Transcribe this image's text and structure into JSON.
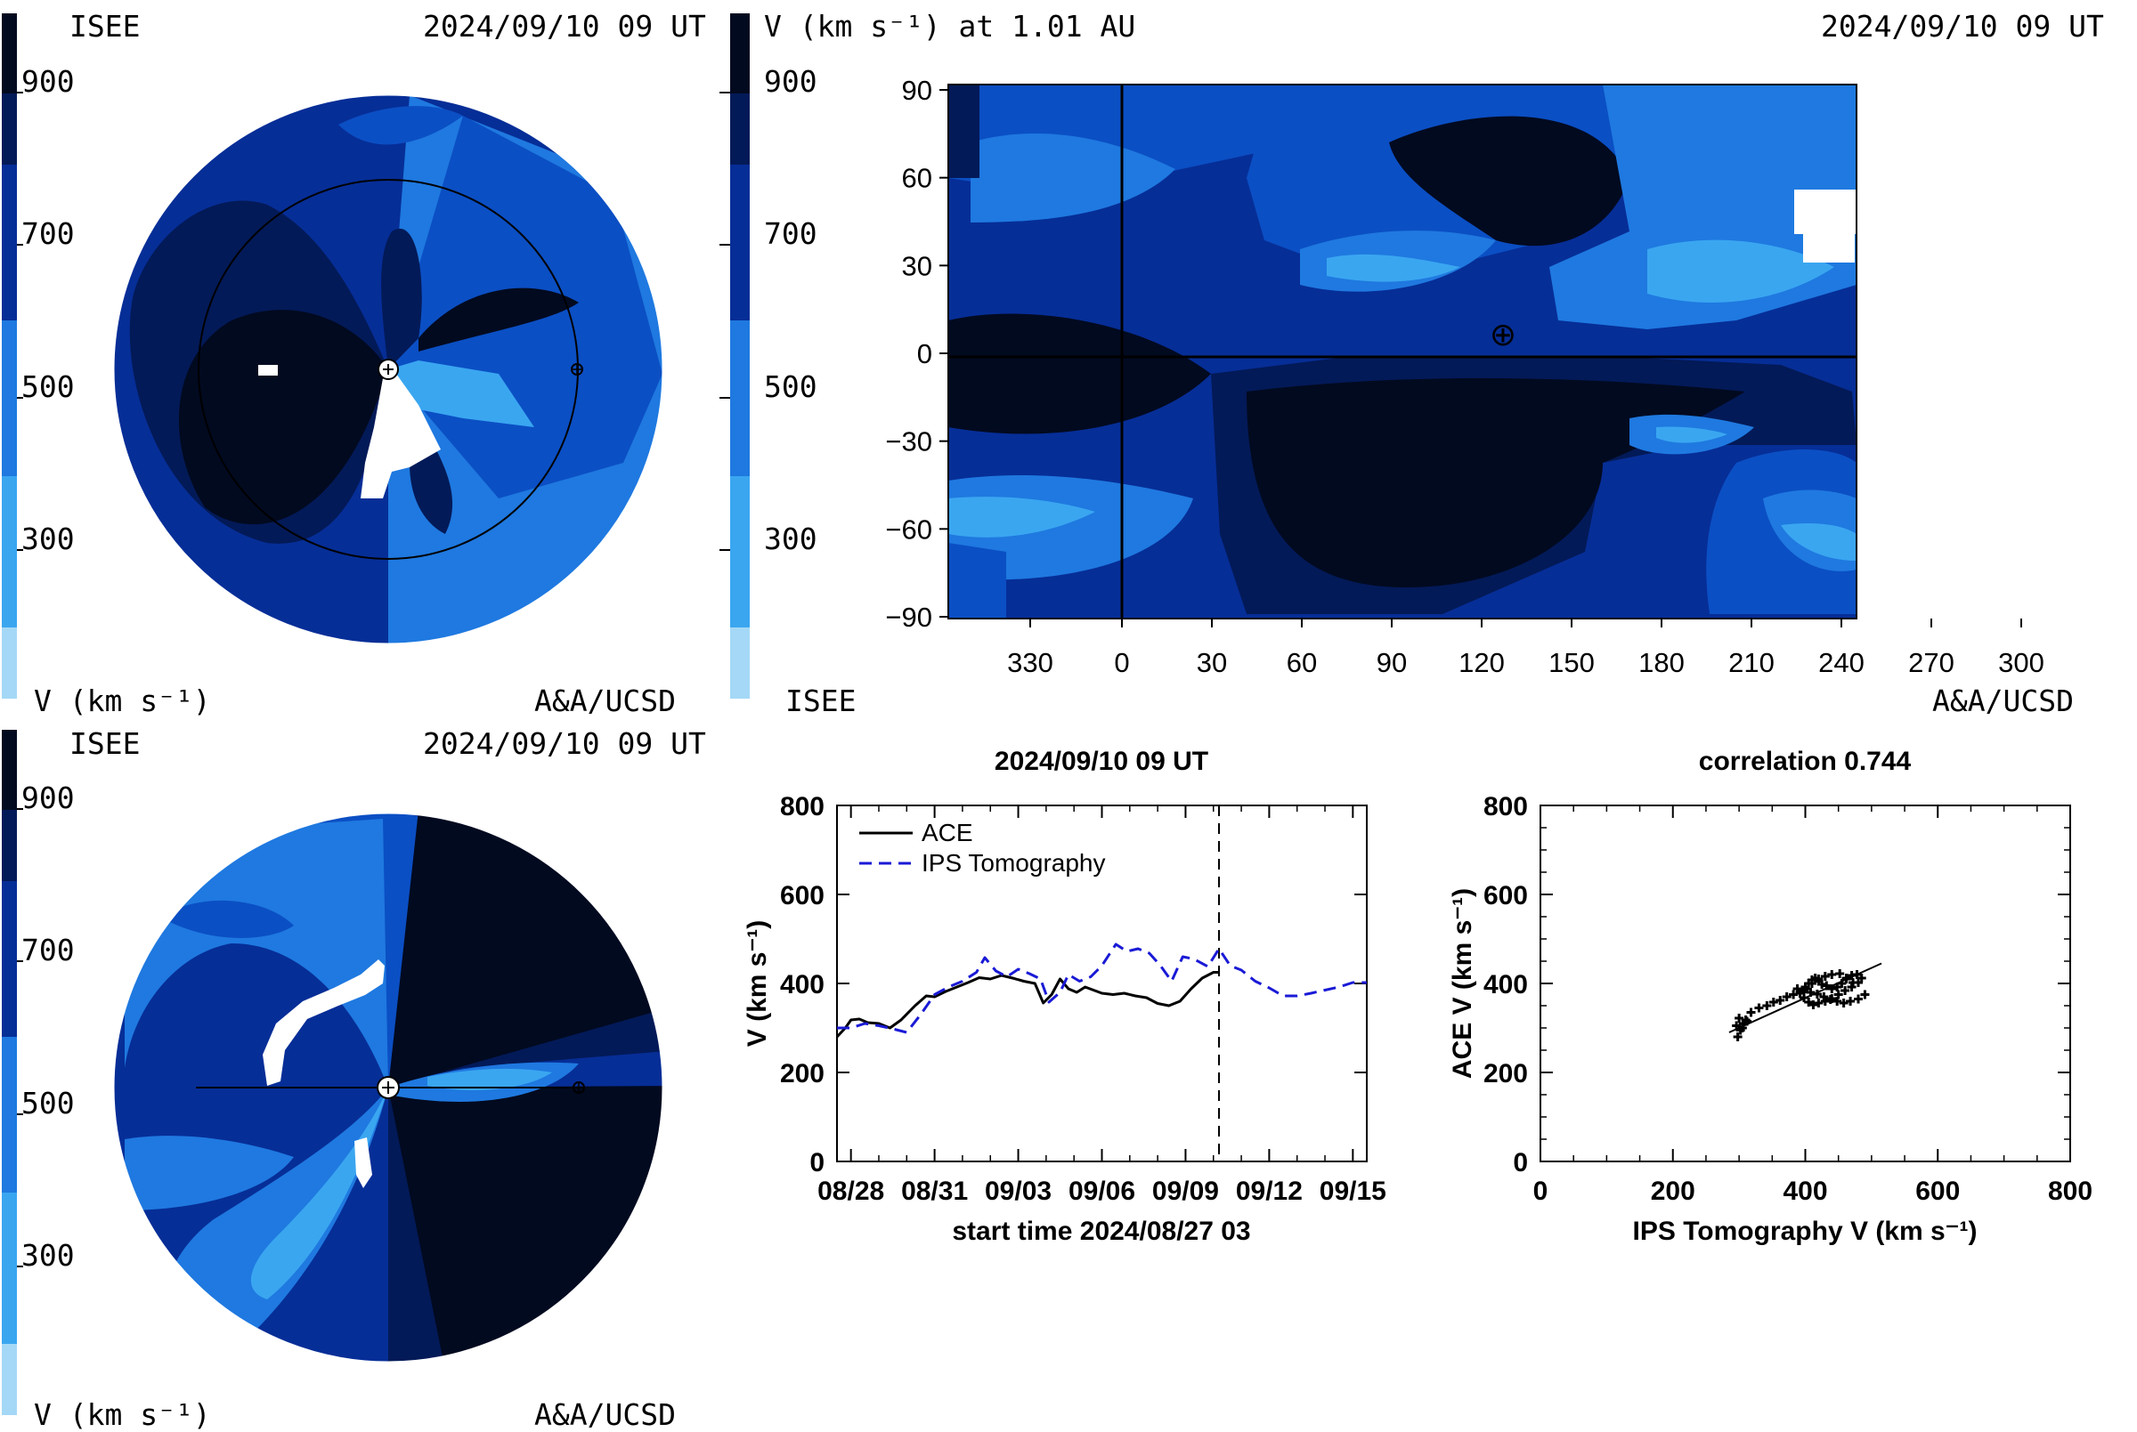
{
  "colors": {
    "scale": [
      "#a4d8f6",
      "#3aa6f0",
      "#1f79e0",
      "#0b4fc4",
      "#062e97",
      "#031a58",
      "#020a20"
    ],
    "axis": "#000000",
    "ace": "#000000",
    "ips": "#1a1ad6"
  },
  "panel_tl": {
    "brand": "ISEE",
    "timestamp": "2024/09/10 09 UT",
    "credit": "A&A/UCSD",
    "colorbar_label": "V (km s⁻¹)",
    "colorbar_ticks": [
      "900",
      "700",
      "500",
      "300"
    ]
  },
  "panel_tr": {
    "colorbar_title": "V (km s⁻¹) at 1.01 AU",
    "timestamp": "2024/09/10 09 UT",
    "brand": "ISEE",
    "credit": "A&A/UCSD",
    "colorbar_ticks": [
      "900",
      "700",
      "500",
      "300"
    ],
    "y_ticks": [
      "90",
      "60",
      "30",
      "0",
      "−30",
      "−60",
      "−90"
    ],
    "x_ticks": [
      "330",
      "0",
      "30",
      "60",
      "90",
      "120",
      "150",
      "180",
      "210",
      "240",
      "270",
      "300"
    ],
    "earth_symbol": "⊕"
  },
  "panel_bl": {
    "brand": "ISEE",
    "timestamp": "2024/09/10 09 UT",
    "credit": "A&A/UCSD",
    "colorbar_label": "V (km s⁻¹)",
    "colorbar_ticks": [
      "900",
      "700",
      "500",
      "300"
    ]
  },
  "chart_data": [
    {
      "type": "line",
      "title": "2024/09/10 09 UT",
      "xlabel": "start time 2024/08/27 03",
      "ylabel": "V (km s⁻¹)",
      "ylim": [
        0,
        800
      ],
      "xlim": [
        0.5,
        19.5
      ],
      "x_tick_labels": [
        "08/28",
        "08/31",
        "09/03",
        "09/06",
        "09/09",
        "09/12",
        "09/15"
      ],
      "x_tick_values": [
        1,
        4,
        7,
        10,
        13,
        16,
        19
      ],
      "y_ticks": [
        0,
        200,
        400,
        600,
        800
      ],
      "current_time_x": 14.2,
      "legend": "top-left",
      "series": [
        {
          "name": "ACE",
          "style": "solid",
          "x": [
            0.5,
            0.8,
            1.0,
            1.3,
            1.6,
            2.0,
            2.4,
            2.8,
            3.3,
            3.7,
            4.0,
            4.4,
            4.8,
            5.2,
            5.6,
            6.0,
            6.4,
            6.8,
            7.2,
            7.6,
            7.9,
            8.2,
            8.5,
            8.8,
            9.1,
            9.4,
            9.7,
            10.0,
            10.4,
            10.8,
            11.2,
            11.6,
            12.0,
            12.4,
            12.8,
            13.2,
            13.6,
            14.0,
            14.2
          ],
          "y": [
            280,
            300,
            318,
            320,
            312,
            310,
            300,
            318,
            350,
            372,
            370,
            382,
            392,
            402,
            413,
            410,
            418,
            412,
            405,
            400,
            356,
            375,
            410,
            388,
            380,
            392,
            385,
            378,
            375,
            378,
            372,
            368,
            355,
            350,
            360,
            388,
            412,
            425,
            425
          ]
        },
        {
          "name": "IPS Tomography",
          "style": "dashed",
          "x": [
            0.5,
            1.0,
            1.5,
            2.0,
            2.5,
            3.0,
            3.5,
            4.0,
            4.5,
            5.0,
            5.5,
            5.8,
            6.2,
            6.6,
            7.0,
            7.4,
            7.8,
            8.1,
            8.5,
            8.8,
            9.2,
            9.6,
            10.0,
            10.5,
            10.9,
            11.3,
            11.7,
            12.1,
            12.5,
            12.9,
            13.3,
            13.8,
            14.2,
            14.6,
            15.0,
            15.5,
            16.0,
            16.5,
            17.0,
            17.5,
            18.0,
            18.5,
            19.0,
            19.5
          ],
          "y": [
            300,
            300,
            310,
            305,
            298,
            290,
            330,
            375,
            392,
            405,
            425,
            458,
            428,
            415,
            432,
            422,
            410,
            358,
            380,
            420,
            405,
            415,
            440,
            488,
            472,
            478,
            468,
            440,
            405,
            460,
            455,
            438,
            478,
            440,
            430,
            405,
            390,
            372,
            372,
            378,
            385,
            392,
            402,
            402
          ]
        }
      ]
    },
    {
      "type": "scatter",
      "title": "correlation 0.744",
      "xlabel": "IPS Tomography V (km s⁻¹)",
      "ylabel": "ACE V (km s⁻¹)",
      "xlim": [
        0,
        800
      ],
      "ylim": [
        0,
        800
      ],
      "x_ticks": [
        0,
        200,
        400,
        600,
        800
      ],
      "y_ticks": [
        0,
        200,
        400,
        600,
        800
      ],
      "fit_line": {
        "x": [
          285,
          515
        ],
        "y": [
          290,
          445
        ]
      },
      "points": {
        "x": [
          298,
          302,
          306,
          310,
          300,
          296,
          305,
          312,
          318,
          330,
          342,
          352,
          362,
          372,
          382,
          392,
          400,
          405,
          410,
          415,
          420,
          425,
          432,
          440,
          448,
          455,
          462,
          470,
          478,
          485,
          480,
          470,
          460,
          450,
          440,
          430,
          420,
          412,
          405,
          398,
          392,
          400,
          410,
          420,
          430,
          440,
          452,
          462,
          472,
          490,
          480,
          468,
          458,
          448,
          438,
          428,
          418,
          408,
          398,
          388
        ],
        "y": [
          280,
          295,
          310,
          318,
          322,
          305,
          300,
          315,
          335,
          345,
          350,
          358,
          362,
          370,
          375,
          380,
          392,
          400,
          408,
          412,
          405,
          398,
          395,
          388,
          392,
          400,
          410,
          418,
          420,
          412,
          402,
          392,
          384,
          375,
          366,
          360,
          356,
          352,
          358,
          368,
          378,
          388,
          400,
          410,
          416,
          420,
          422,
          412,
          402,
          375,
          365,
          360,
          356,
          360,
          364,
          370,
          376,
          380,
          384,
          388
        ]
      }
    }
  ]
}
